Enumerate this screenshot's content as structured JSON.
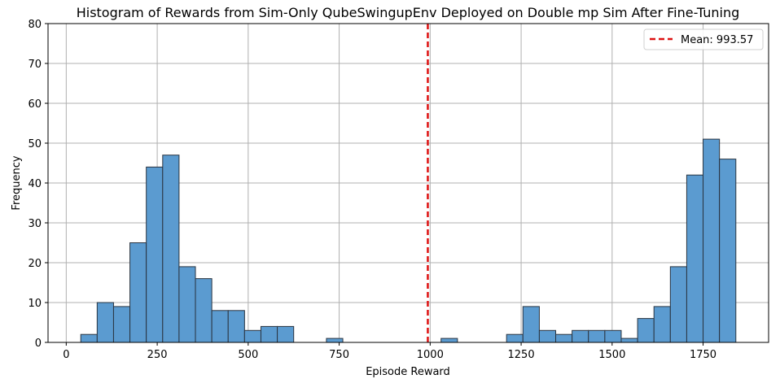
{
  "chart_data": {
    "type": "bar",
    "title": "Histogram of Rewards from Sim-Only QubeSwingupEnv Deployed on Double mp Sim After Fine-Tuning",
    "xlabel": "Episode Reward",
    "ylabel": "Frequency",
    "xlim": [
      -50,
      1930
    ],
    "ylim": [
      0,
      80
    ],
    "xticks": [
      0,
      250,
      500,
      750,
      1000,
      1250,
      1500,
      1750
    ],
    "yticks": [
      0,
      10,
      20,
      30,
      40,
      50,
      60,
      70,
      80
    ],
    "grid": true,
    "legend_position": "top-right",
    "bar_color": "#5b9bd0",
    "bar_edge_color": "#2a3440",
    "bins": [
      {
        "start": 40,
        "end": 85,
        "count": 2
      },
      {
        "start": 85,
        "end": 130,
        "count": 10
      },
      {
        "start": 130,
        "end": 175,
        "count": 9
      },
      {
        "start": 175,
        "end": 220,
        "count": 25
      },
      {
        "start": 220,
        "end": 265,
        "count": 44
      },
      {
        "start": 265,
        "end": 310,
        "count": 47
      },
      {
        "start": 310,
        "end": 355,
        "count": 19
      },
      {
        "start": 355,
        "end": 400,
        "count": 16
      },
      {
        "start": 400,
        "end": 445,
        "count": 8
      },
      {
        "start": 445,
        "end": 490,
        "count": 8
      },
      {
        "start": 490,
        "end": 535,
        "count": 3
      },
      {
        "start": 535,
        "end": 580,
        "count": 4
      },
      {
        "start": 580,
        "end": 625,
        "count": 4
      },
      {
        "start": 715,
        "end": 760,
        "count": 1
      },
      {
        "start": 1030,
        "end": 1075,
        "count": 1
      },
      {
        "start": 1210,
        "end": 1255,
        "count": 2
      },
      {
        "start": 1255,
        "end": 1300,
        "count": 9
      },
      {
        "start": 1300,
        "end": 1345,
        "count": 3
      },
      {
        "start": 1345,
        "end": 1390,
        "count": 2
      },
      {
        "start": 1390,
        "end": 1435,
        "count": 3
      },
      {
        "start": 1435,
        "end": 1480,
        "count": 3
      },
      {
        "start": 1480,
        "end": 1525,
        "count": 3
      },
      {
        "start": 1525,
        "end": 1570,
        "count": 1
      },
      {
        "start": 1570,
        "end": 1615,
        "count": 6
      },
      {
        "start": 1615,
        "end": 1660,
        "count": 9
      },
      {
        "start": 1660,
        "end": 1705,
        "count": 19
      },
      {
        "start": 1705,
        "end": 1750,
        "count": 42
      },
      {
        "start": 1750,
        "end": 1795,
        "count": 51
      },
      {
        "start": 1795,
        "end": 1840,
        "count": 46
      }
    ],
    "mean": {
      "value": 993.57,
      "label": "Mean: 993.57",
      "color": "#dd1111",
      "style": "dashed"
    }
  }
}
